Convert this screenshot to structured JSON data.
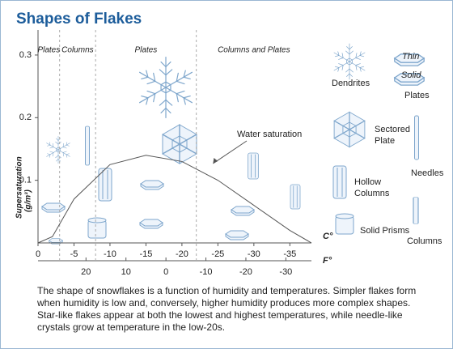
{
  "chart_data": {
    "type": "line",
    "title": "Shapes of Flakes",
    "y_label": "Supersaturation",
    "y_label_unit": "(g/m³)",
    "x_label": "C°",
    "x2_label": "F°",
    "x": [
      0,
      -2,
      -5,
      -10,
      -15,
      -20,
      -25,
      -30,
      -35,
      -38
    ],
    "series": [
      {
        "name": "Water saturation",
        "color": "#555555",
        "values": [
          0.0,
          0.01,
          0.07,
          0.125,
          0.14,
          0.13,
          0.1,
          0.06,
          0.02,
          0.0
        ]
      }
    ],
    "xlim": [
      0,
      -38
    ],
    "xticks": [
      0,
      -5,
      -10,
      -15,
      -20,
      -25,
      -30,
      -35
    ],
    "x2lim": [
      32,
      -36.4
    ],
    "x2ticks": [
      20,
      10,
      0,
      -10,
      -20,
      -30
    ],
    "ylim": [
      0,
      0.34
    ],
    "yticks": [
      0.1,
      0.2,
      0.3
    ],
    "dividers": [
      -3,
      -8,
      -22
    ],
    "regions": [
      "Plates",
      "Columns",
      "Plates",
      "Columns and Plates"
    ],
    "legend_items": [
      "Dendrites",
      "Thin",
      "Solid",
      "Plates",
      "Sectored",
      "Plate",
      "Needles",
      "Hollow",
      "Columns",
      "Solid Prisms",
      "Columns"
    ],
    "caption": "The shape of snowflakes is a function of humidity and temperatures. Simpler flakes form when humidity is low and, conversely, higher humidity produces more complex shapes. Star-like flakes appear at both the lowest and highest temperatures, while needle-like crystals grow at temperature in the low-20s."
  }
}
